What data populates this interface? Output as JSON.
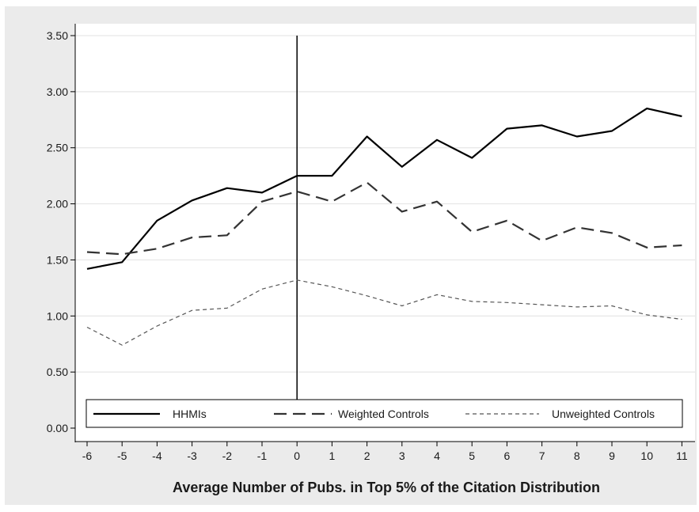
{
  "chart_data": {
    "type": "line",
    "title": "",
    "xlabel": "Average Number of Pubs. in Top 5% of the Citation Distribution",
    "ylabel": "",
    "x": [
      -6,
      -5,
      -4,
      -3,
      -2,
      -1,
      0,
      1,
      2,
      3,
      4,
      5,
      6,
      7,
      8,
      9,
      10,
      11
    ],
    "xticks": [
      "-6",
      "-5",
      "-4",
      "-3",
      "-2",
      "-1",
      "0",
      "1",
      "2",
      "3",
      "4",
      "5",
      "6",
      "7",
      "8",
      "9",
      "10",
      "11"
    ],
    "ylim": [
      0,
      3.5
    ],
    "yticks": [
      "0.00",
      "0.50",
      "1.00",
      "1.50",
      "2.00",
      "2.50",
      "3.00",
      "3.50"
    ],
    "grid": true,
    "reference_line_x": 0,
    "legend_position": "bottom-inside",
    "series": [
      {
        "name": "HHMIs",
        "style": "solid",
        "color": "#000000",
        "values": [
          1.42,
          1.48,
          1.85,
          2.03,
          2.14,
          2.1,
          2.25,
          2.25,
          2.6,
          2.33,
          2.57,
          2.41,
          2.67,
          2.7,
          2.6,
          2.65,
          2.85,
          2.78
        ]
      },
      {
        "name": "Weighted Controls",
        "style": "dashed",
        "color": "#333333",
        "values": [
          1.57,
          1.55,
          1.6,
          1.7,
          1.72,
          2.02,
          2.11,
          2.02,
          2.19,
          1.93,
          2.02,
          1.75,
          1.85,
          1.67,
          1.79,
          1.74,
          1.61,
          1.63
        ]
      },
      {
        "name": "Unweighted Controls",
        "style": "dotted",
        "color": "#555555",
        "values": [
          0.9,
          0.74,
          0.91,
          1.05,
          1.07,
          1.24,
          1.32,
          1.26,
          1.18,
          1.09,
          1.19,
          1.13,
          1.12,
          1.1,
          1.08,
          1.09,
          1.01,
          0.97
        ]
      }
    ]
  }
}
